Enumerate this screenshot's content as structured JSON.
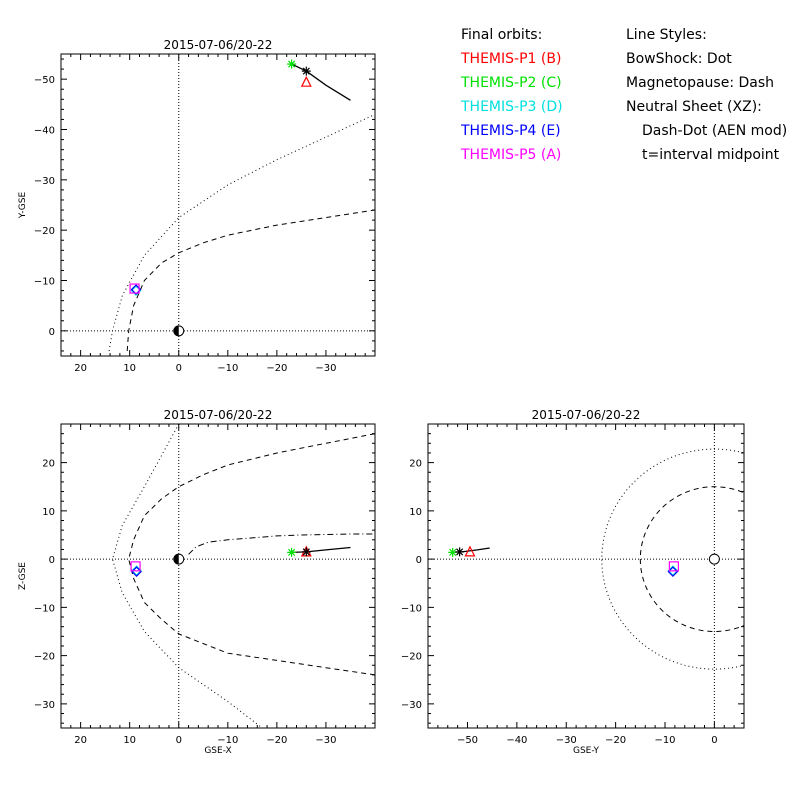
{
  "legend": {
    "orbits_title": "Final orbits:",
    "probes": [
      {
        "label": "THEMIS-P1 (B)",
        "color": "#ff0000"
      },
      {
        "label": "THEMIS-P2 (C)",
        "color": "#00e000"
      },
      {
        "label": "THEMIS-P3 (D)",
        "color": "#00e0e0"
      },
      {
        "label": "THEMIS-P4 (E)",
        "color": "#0000ff"
      },
      {
        "label": "THEMIS-P5 (A)",
        "color": "#ff00ff"
      }
    ],
    "styles_title": "Line Styles:",
    "styles": [
      "BowShock: Dot",
      "Magnetopause: Dash",
      "Neutral Sheet (XZ):",
      "Dash-Dot (AEN mod)",
      "t=interval midpoint"
    ]
  },
  "chart_data": [
    {
      "type": "scatter",
      "title": "2015-07-06/20-22",
      "xlabel": "",
      "ylabel": "Y-GSE",
      "xlim": [
        24,
        -40
      ],
      "ylim": [
        5,
        -55
      ],
      "xticks": [
        20,
        10,
        0,
        -10,
        -20,
        -30
      ],
      "yticks": [
        0,
        -10,
        -20,
        -30,
        -40,
        -50
      ],
      "x_reference_line": 0,
      "y_reference_line": 0,
      "curves": [
        {
          "name": "BowShock",
          "style": "dot",
          "x": [
            14.2,
            13.5,
            11.5,
            7.0,
            0.0,
            -10.0,
            -20.0,
            -30.0,
            -40.0
          ],
          "y": [
            4.0,
            0.0,
            -7.0,
            -15.0,
            -22.5,
            -29.0,
            -34.0,
            -38.5,
            -43.0
          ]
        },
        {
          "name": "Magnetopause",
          "style": "dash",
          "x": [
            10.5,
            10.2,
            9.2,
            7.0,
            3.5,
            0.0,
            -5.0,
            -10.0,
            -20.0,
            -30.0,
            -40.0
          ],
          "y": [
            4.0,
            0.0,
            -5.0,
            -10.0,
            -13.5,
            -15.5,
            -17.5,
            -19.0,
            -21.0,
            -22.5,
            -24.0
          ]
        }
      ],
      "orbit_track": {
        "x": [
          -23.0,
          -26.0,
          -30.0,
          -35.0
        ],
        "y": [
          -53.0,
          -51.6,
          -48.8,
          -45.8
        ]
      },
      "earth": {
        "x": 0,
        "y": 0
      },
      "points": [
        {
          "probe": "THEMIS-P1 (B)",
          "symbol": "triangle",
          "x": -26.0,
          "y": -49.5
        },
        {
          "probe": "THEMIS-P2 (C)",
          "symbol": "asterisk",
          "x": -23.0,
          "y": -53.0
        },
        {
          "probe": "THEMIS-P3 (D)",
          "symbol": "diamond",
          "x": 8.7,
          "y": -8.0
        },
        {
          "probe": "THEMIS-P4 (E)",
          "symbol": "diamond",
          "x": 8.7,
          "y": -8.2
        },
        {
          "probe": "THEMIS-P5 (A)",
          "symbol": "square",
          "x": 9.0,
          "y": -8.4
        },
        {
          "probe": "",
          "symbol": "asterisk",
          "x": -26.0,
          "y": -51.6
        }
      ]
    },
    {
      "type": "scatter",
      "title": "2015-07-06/20-22",
      "xlabel": "GSE-X",
      "ylabel": "Z-GSE",
      "xlim": [
        24,
        -40
      ],
      "ylim": [
        -35,
        28
      ],
      "xticks": [
        20,
        10,
        0,
        -10,
        -20,
        -30
      ],
      "yticks": [
        -30,
        -20,
        -10,
        0,
        10,
        20
      ],
      "x_reference_line": 0,
      "y_reference_line": 0,
      "curves": [
        {
          "name": "BowShock",
          "style": "dot",
          "x": [
            0.0,
            7.0,
            11.5,
            13.5,
            11.5,
            7.0,
            0.0,
            -5.0,
            -10.0,
            -17.0
          ],
          "y": [
            28.0,
            15.0,
            7.0,
            0.0,
            -7.0,
            -15.0,
            -22.5,
            -26.0,
            -29.5,
            -35.0
          ]
        },
        {
          "name": "Magnetopause",
          "style": "dash",
          "x": [
            -40.0,
            -30.0,
            -20.0,
            -10.0,
            -5.0,
            0.0,
            3.5,
            7.0,
            9.2,
            10.2,
            9.2,
            7.0,
            3.5,
            0.0,
            -5.0,
            -10.0,
            -20.0,
            -30.0,
            -40.0
          ],
          "y": [
            26.0,
            24.0,
            22.0,
            19.5,
            17.5,
            15.0,
            12.5,
            9.0,
            4.0,
            0.0,
            -4.0,
            -9.0,
            -12.5,
            -15.5,
            -17.5,
            -19.5,
            -21.0,
            -22.5,
            -24.0
          ]
        },
        {
          "name": "Neutral Sheet",
          "style": "dashdot",
          "x": [
            -2.0,
            -3.5,
            -6.0,
            -10.0,
            -15.0,
            -20.0,
            -25.0,
            -30.0,
            -35.0,
            -40.0
          ],
          "y": [
            1.0,
            2.5,
            3.5,
            4.0,
            4.4,
            4.8,
            5.0,
            5.1,
            5.2,
            5.2
          ]
        }
      ],
      "orbit_track": {
        "x": [
          -23.0,
          -26.0,
          -30.0,
          -35.0
        ],
        "y": [
          1.4,
          1.5,
          1.9,
          2.4
        ]
      },
      "earth": {
        "x": 0,
        "y": 0
      },
      "points": [
        {
          "probe": "THEMIS-P1 (B)",
          "symbol": "triangle",
          "x": -26.0,
          "y": 1.6
        },
        {
          "probe": "THEMIS-P2 (C)",
          "symbol": "asterisk",
          "x": -23.0,
          "y": 1.4
        },
        {
          "probe": "THEMIS-P3 (D)",
          "symbol": "diamond",
          "x": 8.6,
          "y": -2.4
        },
        {
          "probe": "THEMIS-P4 (E)",
          "symbol": "diamond",
          "x": 8.6,
          "y": -2.6
        },
        {
          "probe": "THEMIS-P5 (A)",
          "symbol": "square",
          "x": 8.8,
          "y": -1.5
        },
        {
          "probe": "",
          "symbol": "asterisk",
          "x": -26.0,
          "y": 1.5
        }
      ]
    },
    {
      "type": "scatter",
      "title": "2015-07-06/20-22",
      "xlabel": "GSE-Y",
      "ylabel": "",
      "xlim": [
        -58,
        6
      ],
      "ylim": [
        -35,
        28
      ],
      "xticks": [
        -50,
        -40,
        -30,
        -20,
        -10,
        0
      ],
      "yticks": [
        -30,
        -20,
        -10,
        0,
        10,
        20
      ],
      "x_reference_line": 0,
      "y_reference_line": 0,
      "curves": [
        {
          "name": "BowShock",
          "style": "dot",
          "circle": {
            "cx": 0,
            "cy": 0,
            "r": 22.8
          }
        },
        {
          "name": "Magnetopause",
          "style": "dash",
          "circle": {
            "cx": 0,
            "cy": 0,
            "r": 15.0
          }
        }
      ],
      "orbit_track": {
        "x": [
          -52.0,
          -48.0,
          -45.5
        ],
        "y": [
          1.4,
          1.9,
          2.3
        ]
      },
      "earth": {
        "x": 0,
        "y": 0
      },
      "points": [
        {
          "probe": "THEMIS-P1 (B)",
          "symbol": "triangle",
          "x": -49.5,
          "y": 1.6
        },
        {
          "probe": "THEMIS-P2 (C)",
          "symbol": "asterisk",
          "x": -53.0,
          "y": 1.4
        },
        {
          "probe": "THEMIS-P3 (D)",
          "symbol": "diamond",
          "x": -8.4,
          "y": -2.4
        },
        {
          "probe": "THEMIS-P4 (E)",
          "symbol": "diamond",
          "x": -8.4,
          "y": -2.6
        },
        {
          "probe": "THEMIS-P5 (A)",
          "symbol": "square",
          "x": -8.2,
          "y": -1.5
        },
        {
          "probe": "",
          "symbol": "asterisk",
          "x": -51.6,
          "y": 1.5
        }
      ]
    }
  ]
}
